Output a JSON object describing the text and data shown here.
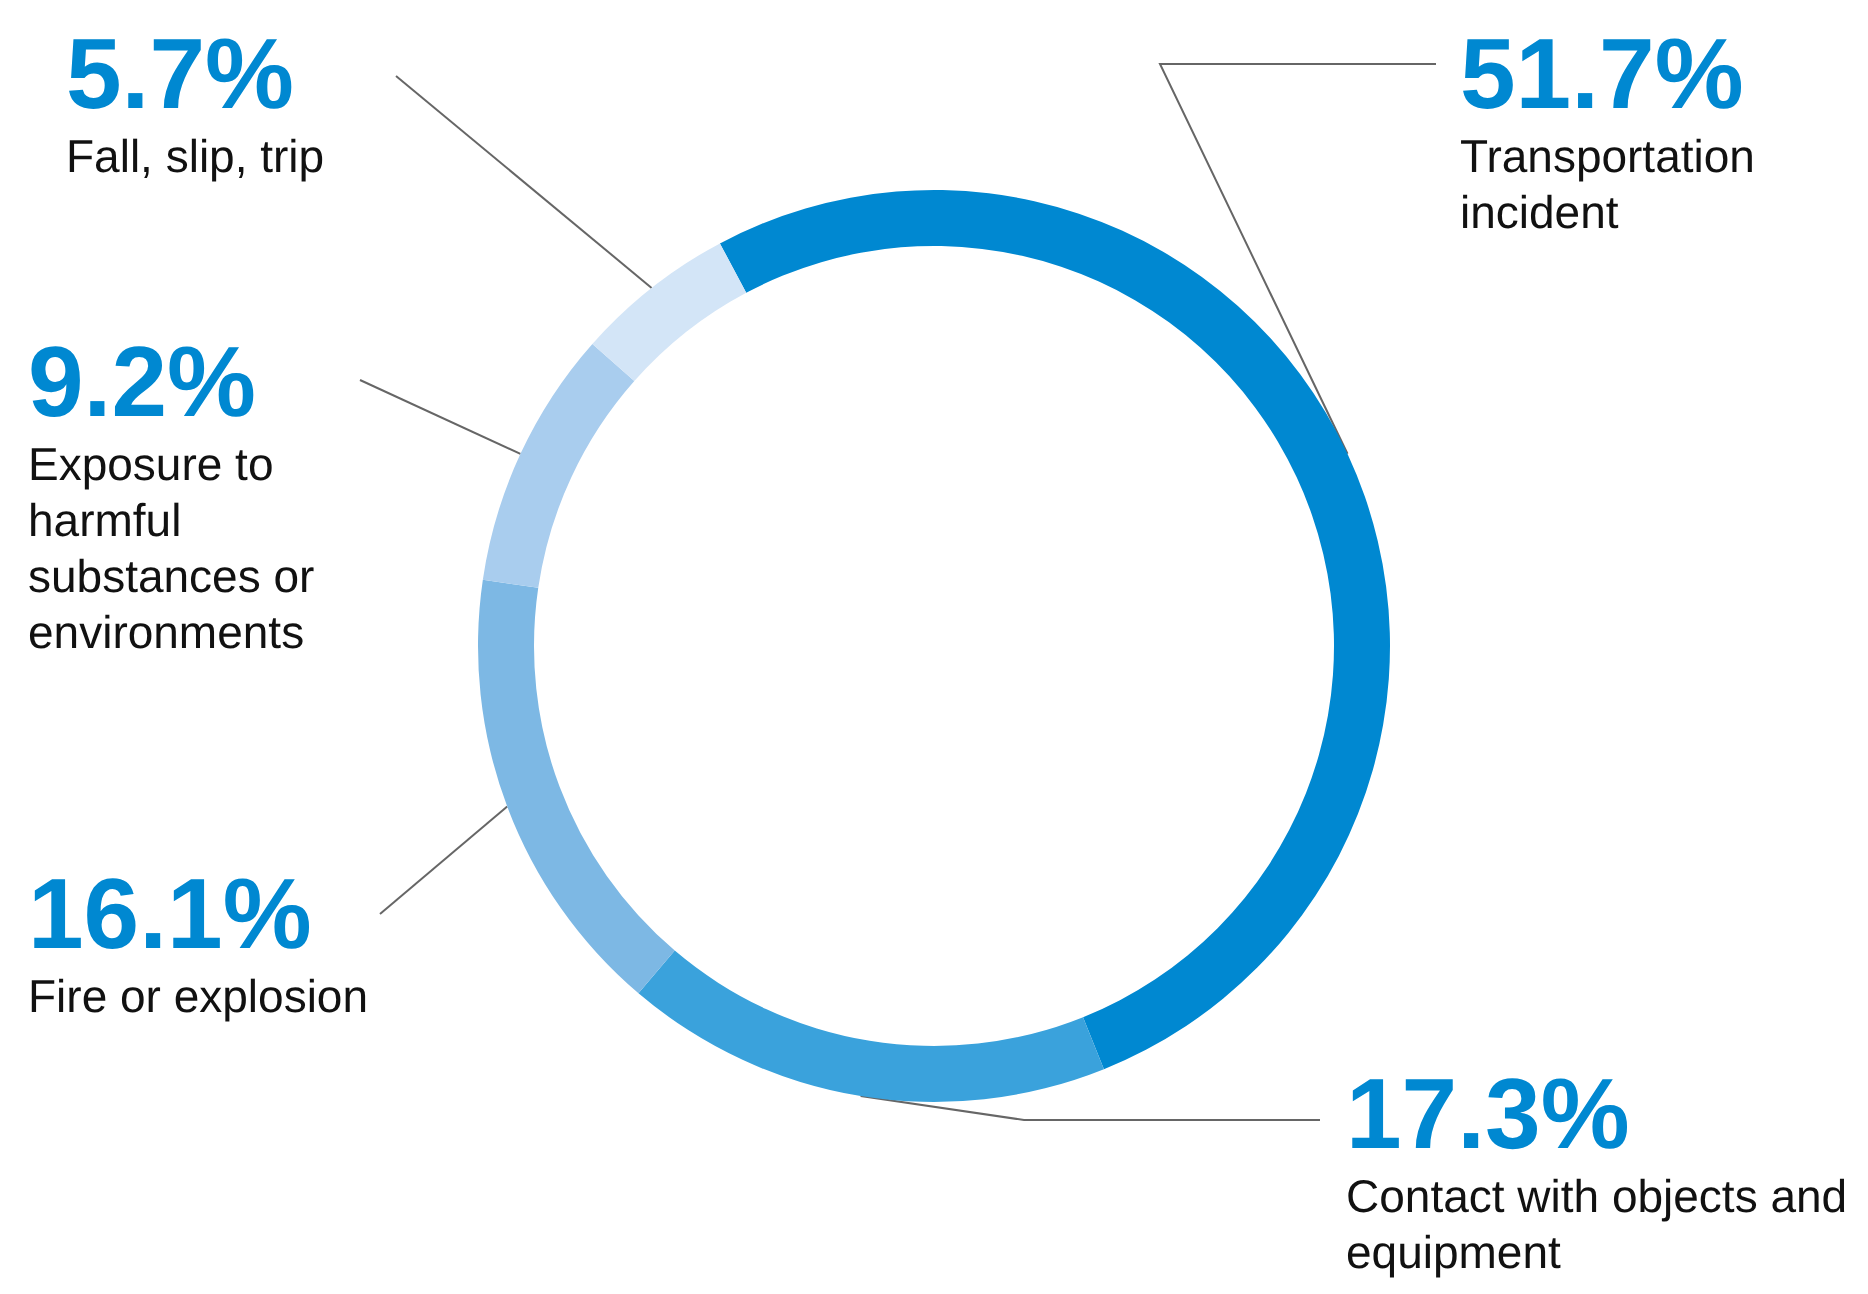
{
  "chart_data": {
    "type": "donut",
    "categories": [
      "Transportation incident",
      "Contact with objects and equipment",
      "Fire or explosion",
      "Exposure to harmful substances or environments",
      "Fall, slip, trip"
    ],
    "values": [
      51.7,
      17.3,
      16.1,
      9.2,
      5.7
    ],
    "value_labels": [
      "51.7%",
      "17.3%",
      "16.1%",
      "9.2%",
      "5.7%"
    ],
    "colors": [
      "#0088d1",
      "#3aa2dc",
      "#7db8e4",
      "#a9cdee",
      "#d3e5f7"
    ],
    "legend": false
  }
}
